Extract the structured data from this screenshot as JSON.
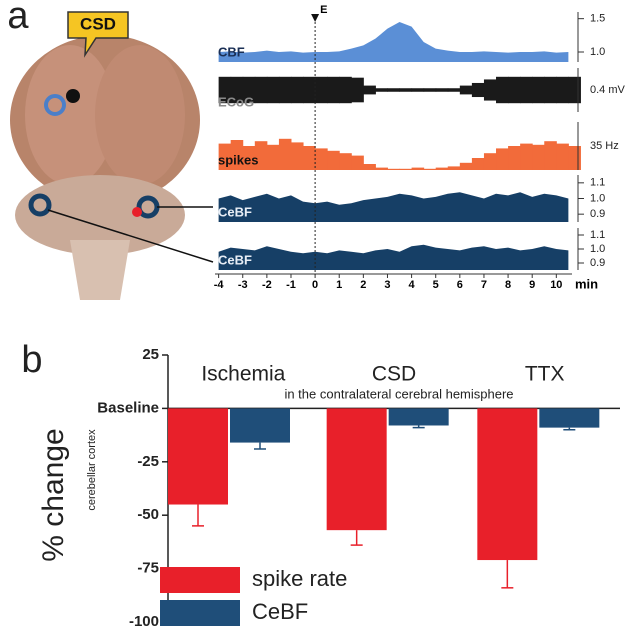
{
  "chart_data": [
    {
      "type": "traces",
      "panel": "a",
      "brain_label": "CSD",
      "event": "E",
      "x_label": "min",
      "xlim": [
        -4.15,
        10.65
      ],
      "xticks": [
        -4,
        -3,
        -2,
        -1,
        0,
        1,
        2,
        3,
        4,
        5,
        6,
        7,
        8,
        9,
        10
      ],
      "x": [
        -4,
        -3.5,
        -3,
        -2.5,
        -2,
        -1.5,
        -1,
        -0.5,
        0,
        0.5,
        1,
        1.5,
        2,
        2.5,
        3,
        3.5,
        4,
        4.5,
        5,
        5.5,
        6,
        6.5,
        7,
        7.5,
        8,
        8.5,
        9,
        9.5,
        10,
        10.5
      ],
      "series": [
        {
          "name": "CBF",
          "style": "area",
          "color": "#5b8fd6",
          "ylim": [
            0.85,
            1.6
          ],
          "yticks": [
            1.5,
            {
              "value": 1,
              "label": "1.0"
            }
          ],
          "values": [
            1.0,
            1.01,
            0.99,
            1.0,
            1.02,
            1.0,
            1.01,
            0.99,
            1.0,
            1.0,
            1.01,
            1.05,
            1.1,
            1.2,
            1.35,
            1.45,
            1.38,
            1.15,
            1.05,
            1.02,
            1.0,
            1.0,
            1.01,
            1.0,
            0.99,
            1.0,
            1.0,
            1.01,
            0.99,
            1.0
          ]
        },
        {
          "name": "ECoG",
          "style": "band",
          "color": "#1a1a1a",
          "ylim": [
            -0.25,
            0.25
          ],
          "scale_label": "0.4 mV",
          "values": [
            0.15,
            0.15,
            0.15,
            0.15,
            0.15,
            0.15,
            0.15,
            0.15,
            0.15,
            0.15,
            0.15,
            0.14,
            0.05,
            0.02,
            0.02,
            0.02,
            0.02,
            0.02,
            0.02,
            0.02,
            0.05,
            0.08,
            0.12,
            0.15,
            0.15,
            0.15,
            0.15,
            0.15,
            0.15,
            0.15
          ]
        },
        {
          "name": "spikes",
          "style": "bars",
          "color": "#f26b3a",
          "ylim": [
            0,
            40
          ],
          "scale_label": "35 Hz",
          "values": [
            22,
            25,
            20,
            24,
            21,
            26,
            23,
            20,
            18,
            16,
            14,
            12,
            5,
            2,
            1,
            1,
            2,
            1,
            2,
            3,
            6,
            10,
            14,
            18,
            20,
            22,
            21,
            24,
            22,
            20
          ]
        },
        {
          "name": "CeBF",
          "style": "area",
          "color": "#163f66",
          "ylim": [
            0.85,
            1.15
          ],
          "yticks": [
            1.1,
            {
              "value": 1,
              "label": "1.0"
            },
            0.9
          ],
          "values": [
            1.0,
            1.02,
            0.99,
            1.01,
            1.03,
            1.0,
            1.02,
            0.98,
            0.97,
            0.98,
            0.96,
            0.97,
            0.99,
            1.0,
            1.01,
            1.03,
            1.02,
            1.0,
            1.01,
            1.03,
            1.04,
            1.02,
            1.0,
            1.03,
            1.02,
            1.04,
            1.01,
            1.03,
            1.02,
            1.0
          ]
        },
        {
          "name": "CeBF",
          "style": "area",
          "color": "#163f66",
          "ylim": [
            0.85,
            1.15
          ],
          "yticks": [
            1.1,
            {
              "value": 1,
              "label": "1.0"
            },
            0.9
          ],
          "values": [
            0.98,
            1.01,
            1.0,
            0.99,
            1.02,
            1.0,
            0.98,
            0.97,
            0.98,
            0.97,
            0.99,
            0.98,
            0.97,
            0.99,
            1.0,
            0.98,
            1.02,
            1.03,
            1.01,
            1.0,
            0.99,
            1.01,
            1.02,
            1.0,
            1.01,
            0.99,
            1.0,
            1.02,
            1.0,
            0.99
          ]
        }
      ]
    },
    {
      "type": "bar",
      "panel": "b",
      "subtitle": "in the contralateral cerebral hemisphere",
      "y_label": "% change",
      "y_sublabel": "cerebellar cortex",
      "categories": [
        "Ischemia",
        "CSD",
        "TTX"
      ],
      "ylim": [
        -100,
        25
      ],
      "yticks": [
        25,
        {
          "value": 0,
          "label": "Baseline"
        },
        -25,
        -50,
        -75,
        -100
      ],
      "legend": "lower left",
      "series": [
        {
          "name": "spike rate",
          "color": "#e8202a",
          "values": [
            -45,
            -57,
            -71
          ],
          "errors": [
            10,
            7,
            13
          ]
        },
        {
          "name": "CeBF",
          "color": "#1f4e79",
          "values": [
            -16,
            -8,
            -9
          ],
          "errors": [
            3,
            1,
            1
          ]
        }
      ]
    }
  ]
}
